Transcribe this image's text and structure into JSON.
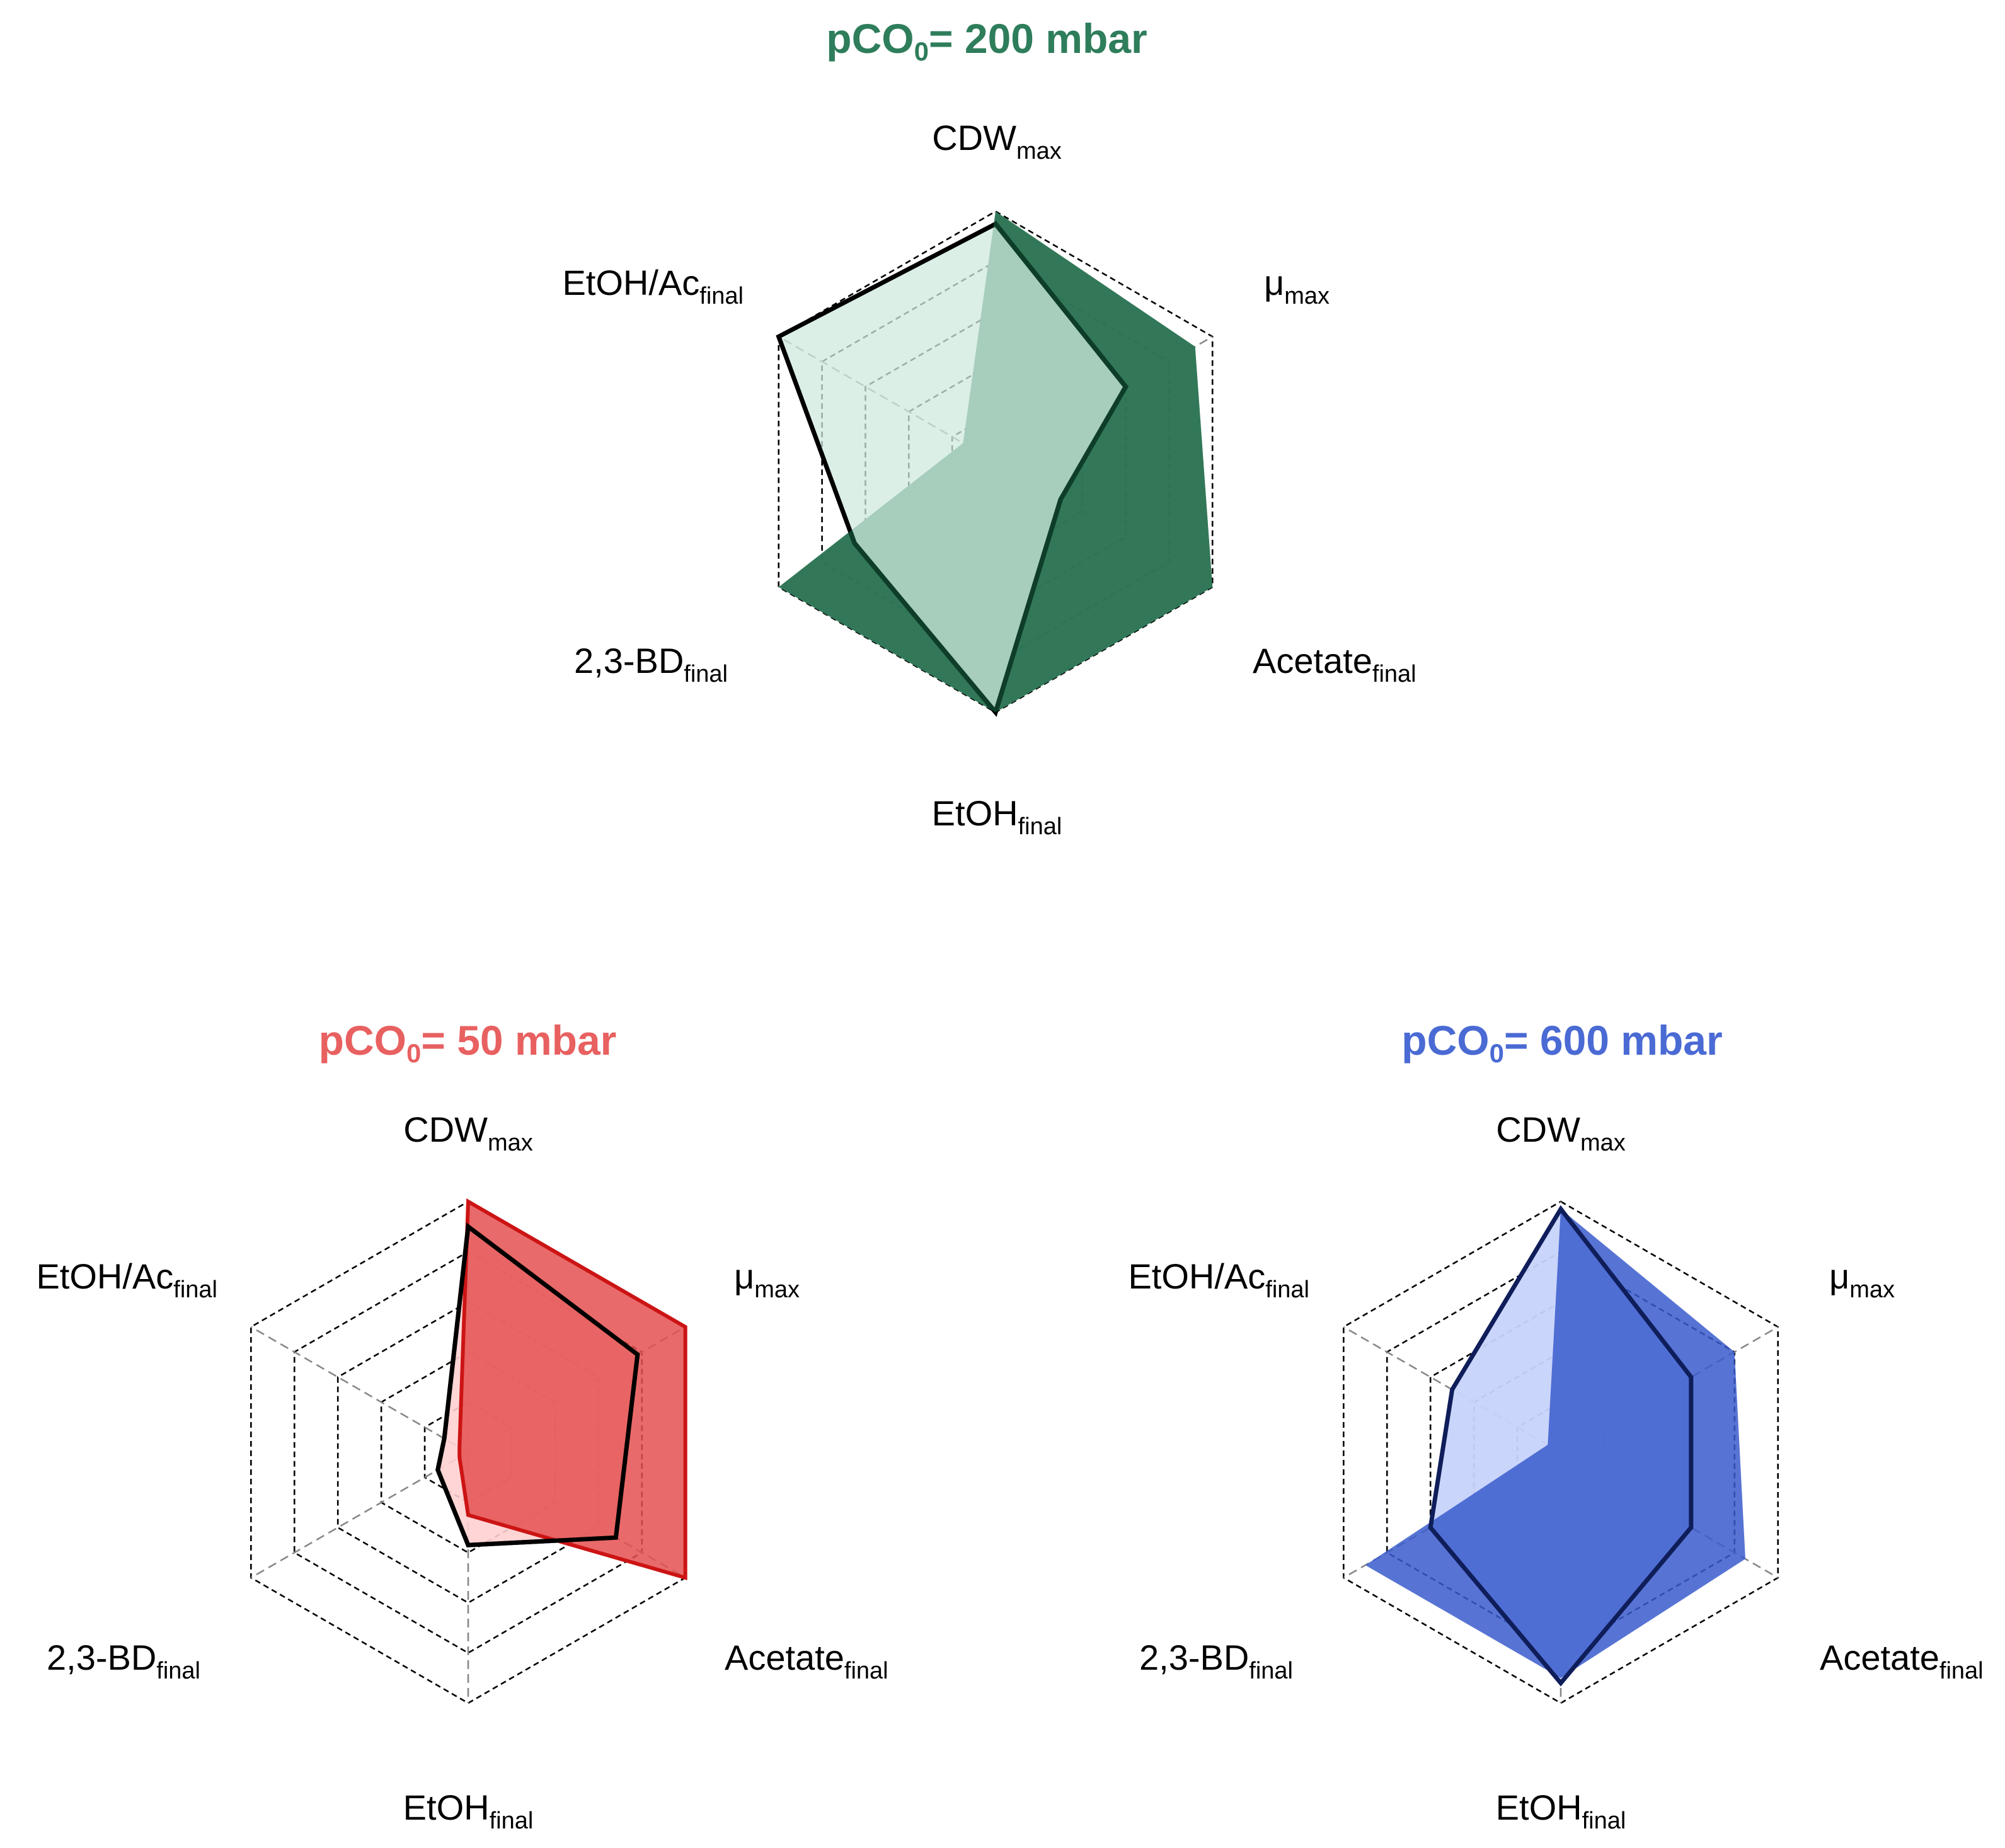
{
  "chart_data": [
    {
      "type": "radar",
      "title": {
        "prefix": "pCO",
        "sub": "0",
        "suffix": "= 200 mbar"
      },
      "title_color": "#2e7d5b",
      "axes": [
        {
          "main": "CDW",
          "sub": "max"
        },
        {
          "main": "μ",
          "sub": "max"
        },
        {
          "main": "Acetate",
          "sub": "final"
        },
        {
          "main": "EtOH",
          "sub": "final"
        },
        {
          "main": "2,3-BD",
          "sub": "final"
        },
        {
          "main": "EtOH/Ac",
          "sub": "final"
        }
      ],
      "levels": 5,
      "range": [
        0,
        1
      ],
      "grid": true,
      "series": [
        {
          "fill": "#2e7555",
          "fill_opacity": 0.98,
          "stroke": "#1f5a40",
          "stroke_width": 0,
          "values": [
            1.0,
            0.92,
            1.0,
            1.0,
            1.0,
            0.15
          ]
        },
        {
          "fill": "#cfeadf",
          "fill_opacity": 0.75,
          "stroke": "#000000",
          "stroke_width": 7,
          "outline_front": true,
          "values": [
            0.95,
            0.6,
            0.3,
            1.0,
            0.65,
            1.0
          ]
        }
      ]
    },
    {
      "type": "radar",
      "title": {
        "prefix": "pCO",
        "sub": "0",
        "suffix": "= 50 mbar"
      },
      "title_color": "#e86060",
      "axes": [
        {
          "main": "CDW",
          "sub": "max"
        },
        {
          "main": "μ",
          "sub": "max"
        },
        {
          "main": "Acetate",
          "sub": "final"
        },
        {
          "main": "EtOH",
          "sub": "final"
        },
        {
          "main": "2,3-BD",
          "sub": "final"
        },
        {
          "main": "EtOH/Ac",
          "sub": "final"
        }
      ],
      "levels": 5,
      "range": [
        0,
        1
      ],
      "grid": true,
      "series": [
        {
          "fill": "#ffd0d0",
          "fill_opacity": 0.9,
          "stroke": "#000000",
          "stroke_width": 7,
          "values": [
            0.9,
            0.78,
            0.68,
            0.37,
            0.14,
            0.11
          ]
        },
        {
          "fill": "#e55050",
          "fill_opacity": 0.85,
          "stroke": "#cc1414",
          "stroke_width": 6,
          "values": [
            1.0,
            1.0,
            1.0,
            0.25,
            0.04,
            0.04
          ]
        },
        {
          "fill": "none",
          "fill_opacity": 0,
          "stroke": "#000000",
          "stroke_width": 7,
          "values": [
            0.9,
            0.78,
            0.68,
            0.37,
            0.14,
            0.11
          ]
        }
      ]
    },
    {
      "type": "radar",
      "title": {
        "prefix": "pCO",
        "sub": "0",
        "suffix": "= 600 mbar"
      },
      "title_color": "#4a6ad4",
      "axes": [
        {
          "main": "CDW",
          "sub": "max"
        },
        {
          "main": "μ",
          "sub": "max"
        },
        {
          "main": "Acetate",
          "sub": "final"
        },
        {
          "main": "EtOH",
          "sub": "final"
        },
        {
          "main": "2,3-BD",
          "sub": "final"
        },
        {
          "main": "EtOH/Ac",
          "sub": "final"
        }
      ],
      "levels": 5,
      "range": [
        0,
        1
      ],
      "grid": true,
      "series": [
        {
          "fill": "#c7d3fb",
          "fill_opacity": 0.95,
          "stroke": "none",
          "stroke_width": 0,
          "values": [
            0.97,
            0.6,
            0.6,
            0.92,
            0.6,
            0.5
          ]
        },
        {
          "fill": "#3a5ccc",
          "fill_opacity": 0.85,
          "stroke": "none",
          "stroke_width": 0,
          "values": [
            0.97,
            0.8,
            0.85,
            0.9,
            0.9,
            0.06
          ]
        },
        {
          "fill": "none",
          "fill_opacity": 0,
          "stroke": "#0f1e5a",
          "stroke_width": 7,
          "values": [
            0.97,
            0.6,
            0.6,
            0.92,
            0.6,
            0.5
          ]
        }
      ]
    }
  ]
}
